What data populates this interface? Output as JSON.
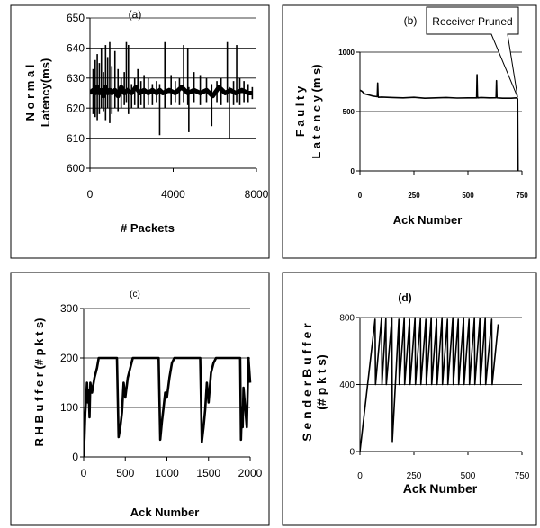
{
  "chart_data": [
    {
      "id": "a",
      "type": "line",
      "title": "(a)",
      "xlabel": "# Packets",
      "ylabel_lines": [
        "N o r m a l",
        "Latency(ms)"
      ],
      "xlim": [
        0,
        8000
      ],
      "ylim": [
        600,
        650
      ],
      "xticks": [
        0,
        4000,
        8000
      ],
      "xtick_labels": [
        "0",
        "4000",
        "8000"
      ],
      "yticks": [
        600,
        610,
        620,
        630,
        640,
        650
      ],
      "ytick_labels": [
        "600",
        "610",
        "620",
        "630",
        "640",
        "650"
      ],
      "grid": "horizontal",
      "series": [
        {
          "x": [
            0,
            150,
            250,
            350,
            450,
            550,
            650,
            750,
            850,
            950,
            1050,
            1200,
            1350,
            1500,
            1650,
            1800,
            2000,
            2200,
            2400,
            2600,
            2800,
            3000,
            3200,
            3350,
            3500,
            3800,
            4100,
            4400,
            4700,
            5000,
            5300,
            5600,
            5900,
            6200,
            6500,
            6750,
            7000,
            7300,
            7600,
            7800
          ],
          "y": [
            625,
            626,
            625,
            627,
            625,
            626,
            624,
            627,
            625,
            626,
            625,
            626,
            624,
            627,
            625,
            626,
            625,
            627,
            625,
            626,
            625,
            626,
            625,
            626,
            625,
            626,
            625,
            627,
            625,
            626,
            625,
            626,
            624,
            627,
            625,
            626,
            625,
            626,
            625,
            625
          ]
        }
      ],
      "spikes": [
        [
          150,
          633,
          618
        ],
        [
          250,
          636,
          617
        ],
        [
          350,
          638,
          616
        ],
        [
          450,
          635,
          618
        ],
        [
          550,
          640,
          620
        ],
        [
          650,
          632,
          619
        ],
        [
          750,
          641,
          616
        ],
        [
          850,
          637,
          620
        ],
        [
          950,
          642,
          615
        ],
        [
          1050,
          634,
          618
        ],
        [
          1200,
          639,
          620
        ],
        [
          1350,
          633,
          619
        ],
        [
          1500,
          630,
          620
        ],
        [
          1650,
          632,
          621
        ],
        [
          1750,
          642,
          622
        ],
        [
          1850,
          641,
          618
        ],
        [
          2000,
          628,
          620
        ],
        [
          2150,
          630,
          621
        ],
        [
          2300,
          633,
          620
        ],
        [
          2450,
          629,
          621
        ],
        [
          2600,
          631,
          620
        ],
        [
          2800,
          630,
          621
        ],
        [
          3000,
          628,
          621
        ],
        [
          3200,
          629,
          622
        ],
        [
          3350,
          628,
          611
        ],
        [
          3600,
          642,
          620
        ],
        [
          3900,
          631,
          621
        ],
        [
          4100,
          629,
          622
        ],
        [
          4300,
          630,
          621
        ],
        [
          4500,
          641,
          622
        ],
        [
          4700,
          640,
          621
        ],
        [
          4750,
          627,
          612
        ],
        [
          5000,
          632,
          622
        ],
        [
          5300,
          631,
          621
        ],
        [
          5600,
          630,
          622
        ],
        [
          5850,
          628,
          614
        ],
        [
          6100,
          629,
          622
        ],
        [
          6300,
          630,
          621
        ],
        [
          6600,
          642,
          622
        ],
        [
          6700,
          627,
          610
        ],
        [
          6900,
          629,
          621
        ],
        [
          7050,
          641,
          622
        ],
        [
          7200,
          630,
          621
        ],
        [
          7400,
          629,
          622
        ],
        [
          7600,
          628,
          622
        ],
        [
          7800,
          627,
          623
        ]
      ]
    },
    {
      "id": "b",
      "type": "line",
      "title": "(b)",
      "xlabel": "Ack Number",
      "ylabel_lines": [
        "F a u l t y",
        "L a t e n c y (m s)"
      ],
      "xlim": [
        0,
        750
      ],
      "ylim": [
        0,
        1000
      ],
      "xticks": [
        0,
        250,
        500,
        750
      ],
      "xtick_labels": [
        "0",
        "250",
        "500",
        "750"
      ],
      "yticks": [
        0,
        500,
        1000
      ],
      "ytick_labels": [
        "0",
        "500",
        "1000"
      ],
      "grid": "horizontal",
      "annotation": "Receiver Pruned",
      "annotation_point": [
        730,
        620
      ],
      "series": [
        {
          "x": [
            0,
            10,
            20,
            30,
            40,
            60,
            80,
            82,
            84,
            86,
            100,
            150,
            200,
            250,
            300,
            350,
            400,
            450,
            500,
            540,
            542,
            544,
            546,
            560,
            600,
            630,
            632,
            634,
            636,
            660,
            700,
            725,
            728,
            730,
            732
          ],
          "y": [
            680,
            670,
            650,
            645,
            640,
            630,
            625,
            740,
            630,
            620,
            622,
            618,
            615,
            620,
            612,
            615,
            618,
            614,
            615,
            615,
            810,
            630,
            615,
            618,
            615,
            616,
            760,
            620,
            615,
            612,
            612,
            615,
            612,
            605,
            0
          ]
        }
      ]
    },
    {
      "id": "c",
      "type": "line",
      "title": "(c)",
      "xlabel": "Ack Number",
      "ylabel_lines": [
        "R H  B u f f e r  (# p k t s)"
      ],
      "xlim": [
        0,
        2000
      ],
      "ylim": [
        0,
        300
      ],
      "xticks": [
        0,
        500,
        1000,
        1500,
        2000
      ],
      "xtick_labels": [
        "0",
        "500",
        "1000",
        "1500",
        "2000"
      ],
      "yticks": [
        0,
        100,
        200,
        300
      ],
      "ytick_labels": [
        "0",
        "100",
        "200",
        "300"
      ],
      "grid": "horizontal",
      "series": [
        {
          "x": [
            0,
            10,
            20,
            30,
            40,
            50,
            60,
            70,
            80,
            100,
            130,
            160,
            180,
            200,
            400,
            420,
            440,
            460,
            480,
            500,
            530,
            560,
            590,
            620,
            900,
            920,
            940,
            960,
            980,
            1000,
            1030,
            1060,
            1090,
            1120,
            1400,
            1420,
            1440,
            1460,
            1480,
            1500,
            1530,
            1560,
            1590,
            1620,
            1880,
            1890,
            1900,
            1910,
            1920,
            1930,
            1960,
            1980,
            2000
          ],
          "y": [
            0,
            40,
            90,
            120,
            150,
            110,
            135,
            80,
            150,
            130,
            160,
            180,
            200,
            200,
            200,
            40,
            60,
            90,
            150,
            120,
            160,
            180,
            200,
            200,
            200,
            35,
            70,
            100,
            130,
            120,
            160,
            190,
            200,
            200,
            200,
            30,
            60,
            95,
            150,
            110,
            170,
            190,
            200,
            200,
            200,
            35,
            100,
            60,
            140,
            120,
            60,
            200,
            150
          ]
        }
      ]
    },
    {
      "id": "d",
      "type": "line",
      "title": "(d)",
      "xlabel": "Ack Number",
      "ylabel_lines": [
        "S e n d e r  B u f f e r",
        "(# p k t s)"
      ],
      "xlim": [
        0,
        750
      ],
      "ylim": [
        0,
        800
      ],
      "xticks": [
        0,
        250,
        500,
        750
      ],
      "xtick_labels": [
        "0",
        "250",
        "500",
        "750"
      ],
      "yticks": [
        0,
        400,
        800
      ],
      "ytick_labels": [
        "0",
        "400",
        "800"
      ],
      "grid": "horizontal",
      "series": [
        {
          "x": [
            0,
            70,
            72,
            100,
            102,
            120,
            122,
            148,
            150,
            180,
            182,
            205,
            207,
            230,
            232,
            255,
            257,
            280,
            282,
            305,
            307,
            330,
            332,
            355,
            357,
            380,
            382,
            405,
            407,
            430,
            432,
            455,
            457,
            480,
            482,
            505,
            507,
            530,
            532,
            555,
            557,
            580,
            582,
            610,
            612,
            640
          ],
          "y": [
            0,
            790,
            400,
            800,
            400,
            795,
            400,
            800,
            60,
            790,
            400,
            800,
            400,
            790,
            400,
            800,
            400,
            795,
            400,
            790,
            400,
            800,
            400,
            790,
            400,
            800,
            400,
            790,
            400,
            800,
            400,
            790,
            400,
            800,
            400,
            790,
            400,
            800,
            400,
            795,
            400,
            800,
            400,
            790,
            400,
            760
          ]
        }
      ]
    }
  ]
}
